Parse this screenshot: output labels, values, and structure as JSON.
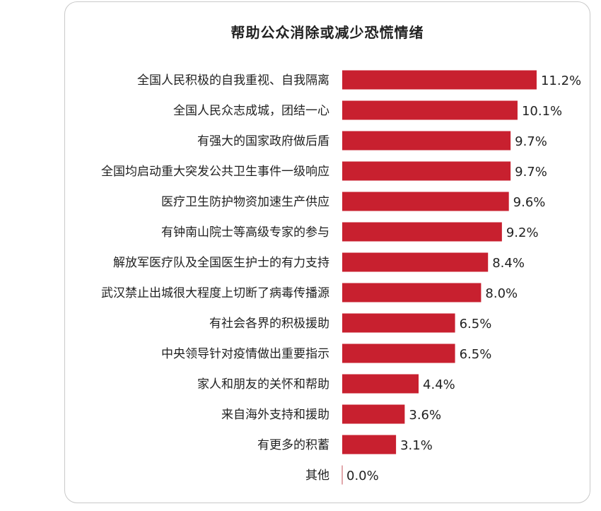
{
  "chart_data": {
    "type": "bar",
    "orientation": "horizontal",
    "title": "帮助公众消除或减少恐慌情绪",
    "categories": [
      "全国人民积极的自我重视、自我隔离",
      "全国人民众志成城，团结一心",
      "有强大的国家政府做后盾",
      "全国均启动重大突发公共卫生事件一级响应",
      "医疗卫生防护物资加速生产供应",
      "有钟南山院士等高级专家的参与",
      "解放军医疗队及全国医生护士的有力支持",
      "武汉禁止出城很大程度上切断了病毒传播源",
      "有社会各界的积极援助",
      "中央领导针对疫情做出重要指示",
      "家人和朋友的关怀和帮助",
      "来自海外支持和援助",
      "有更多的积蓄",
      "其他"
    ],
    "values": [
      11.2,
      10.1,
      9.7,
      9.7,
      9.6,
      9.2,
      8.4,
      8.0,
      6.5,
      6.5,
      4.4,
      3.6,
      3.1,
      0.0
    ],
    "value_labels": [
      "11.2%",
      "10.1%",
      "9.7%",
      "9.7%",
      "9.6%",
      "9.2%",
      "8.4%",
      "8.0%",
      "6.5%",
      "6.5%",
      "4.4%",
      "3.6%",
      "3.1%",
      "0.0%"
    ],
    "xlim": [
      0,
      11.2
    ],
    "grid": false,
    "legend": "none",
    "bar_color": "#c8202f"
  }
}
